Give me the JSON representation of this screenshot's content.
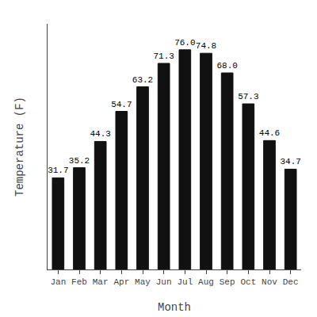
{
  "chart_data": {
    "type": "bar",
    "categories": [
      "Jan",
      "Feb",
      "Mar",
      "Apr",
      "May",
      "Jun",
      "Jul",
      "Aug",
      "Sep",
      "Oct",
      "Nov",
      "Dec"
    ],
    "values": [
      31.7,
      35.2,
      44.3,
      54.7,
      63.2,
      71.3,
      76.0,
      74.8,
      68.0,
      57.3,
      44.6,
      34.7
    ],
    "value_labels": [
      "31.7",
      "35.2",
      "44.3",
      "54.7",
      "63.2",
      "71.3",
      "76.0",
      "74.8",
      "68.0",
      "57.3",
      "44.6",
      "34.7"
    ],
    "color": "#111111",
    "xlabel": "Month",
    "ylabel": "Temperature (F)",
    "ylim": [
      0,
      85
    ],
    "yticks": [],
    "grid": false,
    "data_labels": true,
    "tick_labels": "x"
  }
}
